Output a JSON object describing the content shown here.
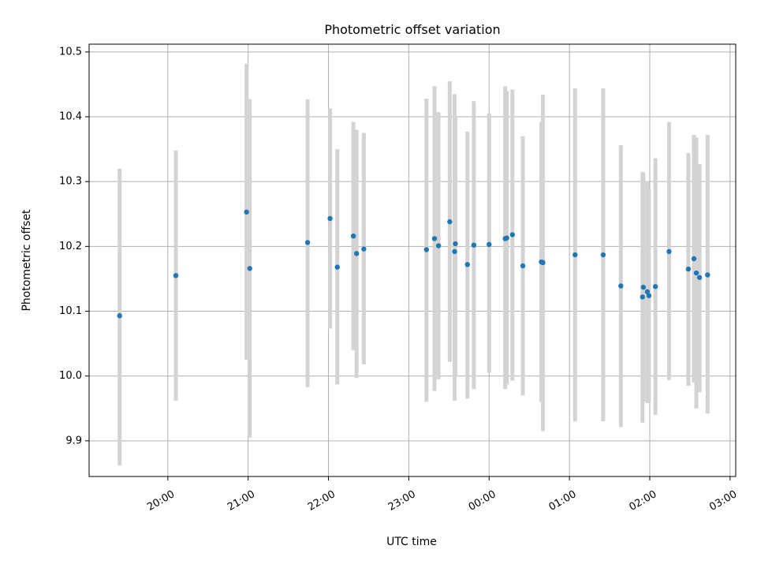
{
  "chart_data": {
    "type": "scatter",
    "title": "Photometric offset variation",
    "xlabel": "UTC time",
    "ylabel": "Photometric offset",
    "x_tick_labels": [
      "20:00",
      "21:00",
      "22:00",
      "23:00",
      "00:00",
      "01:00",
      "02:00",
      "03:00"
    ],
    "y_tick_labels": [
      "9.9",
      "10.0",
      "10.1",
      "10.2",
      "10.3",
      "10.4",
      "10.5"
    ],
    "x_ticks_hours": [
      20,
      21,
      22,
      23,
      24,
      25,
      26,
      27
    ],
    "y_ticks": [
      9.9,
      10.0,
      10.1,
      10.2,
      10.3,
      10.4,
      10.5
    ],
    "xlim_hours": [
      19.02,
      27.07
    ],
    "ylim": [
      9.845,
      10.512
    ],
    "grid": true,
    "point_color": "#1f77b4",
    "errorbar_color": "#d3d3d3",
    "points": [
      {
        "t": 19.4,
        "y": 10.093,
        "lo": 9.862,
        "hi": 10.32
      },
      {
        "t": 20.1,
        "y": 10.155,
        "lo": 9.962,
        "hi": 10.348
      },
      {
        "t": 20.98,
        "y": 10.253,
        "lo": 10.025,
        "hi": 10.482
      },
      {
        "t": 21.02,
        "y": 10.166,
        "lo": 9.905,
        "hi": 10.427
      },
      {
        "t": 21.74,
        "y": 10.206,
        "lo": 9.983,
        "hi": 10.427
      },
      {
        "t": 22.02,
        "y": 10.243,
        "lo": 10.073,
        "hi": 10.413
      },
      {
        "t": 22.11,
        "y": 10.168,
        "lo": 9.987,
        "hi": 10.35
      },
      {
        "t": 22.31,
        "y": 10.216,
        "lo": 10.04,
        "hi": 10.392
      },
      {
        "t": 22.35,
        "y": 10.189,
        "lo": 9.997,
        "hi": 10.38
      },
      {
        "t": 22.44,
        "y": 10.196,
        "lo": 10.018,
        "hi": 10.375
      },
      {
        "t": 23.22,
        "y": 10.195,
        "lo": 9.96,
        "hi": 10.428
      },
      {
        "t": 23.32,
        "y": 10.212,
        "lo": 9.977,
        "hi": 10.447
      },
      {
        "t": 23.37,
        "y": 10.201,
        "lo": 9.995,
        "hi": 10.407
      },
      {
        "t": 23.51,
        "y": 10.238,
        "lo": 10.022,
        "hi": 10.455
      },
      {
        "t": 23.57,
        "y": 10.192,
        "lo": 9.962,
        "hi": 10.435
      },
      {
        "t": 23.58,
        "y": 10.204,
        "lo": 10.0,
        "hi": 10.4
      },
      {
        "t": 23.73,
        "y": 10.172,
        "lo": 9.965,
        "hi": 10.377
      },
      {
        "t": 23.81,
        "y": 10.202,
        "lo": 9.98,
        "hi": 10.424
      },
      {
        "t": 24.0,
        "y": 10.203,
        "lo": 10.005,
        "hi": 10.405
      },
      {
        "t": 24.2,
        "y": 10.212,
        "lo": 9.98,
        "hi": 10.447
      },
      {
        "t": 24.22,
        "y": 10.213,
        "lo": 9.987,
        "hi": 10.44
      },
      {
        "t": 24.29,
        "y": 10.218,
        "lo": 9.993,
        "hi": 10.442
      },
      {
        "t": 24.42,
        "y": 10.17,
        "lo": 9.97,
        "hi": 10.37
      },
      {
        "t": 24.65,
        "y": 10.176,
        "lo": 9.96,
        "hi": 10.392
      },
      {
        "t": 24.67,
        "y": 10.175,
        "lo": 9.915,
        "hi": 10.434
      },
      {
        "t": 25.07,
        "y": 10.187,
        "lo": 9.93,
        "hi": 10.444
      },
      {
        "t": 25.42,
        "y": 10.187,
        "lo": 9.93,
        "hi": 10.444
      },
      {
        "t": 25.64,
        "y": 10.139,
        "lo": 9.921,
        "hi": 10.356
      },
      {
        "t": 25.91,
        "y": 10.122,
        "lo": 9.928,
        "hi": 10.315
      },
      {
        "t": 25.92,
        "y": 10.137,
        "lo": 9.96,
        "hi": 10.313
      },
      {
        "t": 25.97,
        "y": 10.13,
        "lo": 9.958,
        "hi": 10.301
      },
      {
        "t": 25.99,
        "y": 10.124,
        "lo": 9.96,
        "hi": 10.288
      },
      {
        "t": 26.07,
        "y": 10.138,
        "lo": 9.94,
        "hi": 10.336
      },
      {
        "t": 26.24,
        "y": 10.192,
        "lo": 9.994,
        "hi": 10.392
      },
      {
        "t": 26.48,
        "y": 10.165,
        "lo": 9.985,
        "hi": 10.344
      },
      {
        "t": 26.55,
        "y": 10.181,
        "lo": 9.99,
        "hi": 10.372
      },
      {
        "t": 26.58,
        "y": 10.159,
        "lo": 9.95,
        "hi": 10.368
      },
      {
        "t": 26.62,
        "y": 10.152,
        "lo": 9.975,
        "hi": 10.327
      },
      {
        "t": 26.72,
        "y": 10.156,
        "lo": 9.942,
        "hi": 10.372
      }
    ]
  }
}
